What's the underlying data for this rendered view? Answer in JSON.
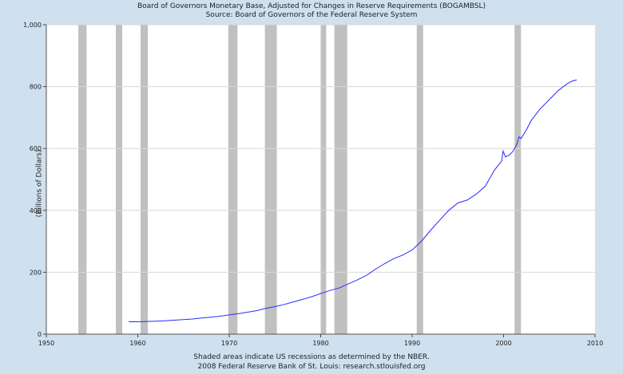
{
  "chart_data": {
    "type": "line",
    "title": "Board of Governors Monetary Base, Adjusted for Changes in Reserve Requirements (BOGAMBSL)",
    "subtitle": "Source: Board of Governors of the Federal Reserve System",
    "xlabel": "",
    "ylabel": "(Billions of Dollars)",
    "xlim": [
      1950,
      2010
    ],
    "ylim": [
      0,
      1000
    ],
    "x_ticks": [
      1950,
      1960,
      1970,
      1980,
      1990,
      2000,
      2010
    ],
    "y_ticks": [
      0,
      200,
      400,
      600,
      800,
      1000
    ],
    "y_tick_labels": [
      "0",
      "200",
      "400",
      "600",
      "800",
      "1,000"
    ],
    "grid": "horizontal",
    "colors": {
      "background": "#cfe0ef",
      "plot": "#ffffff",
      "line": "#2a2aff",
      "recession": "#c0c0c0",
      "grid": "#d8d8d8"
    },
    "recessions": [
      [
        1953.5,
        1954.4
      ],
      [
        1957.6,
        1958.3
      ],
      [
        1960.3,
        1961.1
      ],
      [
        1969.9,
        1970.9
      ],
      [
        1973.9,
        1975.2
      ],
      [
        1980.0,
        1980.6
      ],
      [
        1981.5,
        1982.9
      ],
      [
        1990.5,
        1991.2
      ],
      [
        2001.2,
        2001.9
      ]
    ],
    "series": [
      {
        "name": "BOGAMBSL",
        "x": [
          1959.0,
          1960.0,
          1961.0,
          1962.0,
          1963.0,
          1964.0,
          1965.0,
          1966.0,
          1967.0,
          1968.0,
          1969.0,
          1970.0,
          1971.0,
          1972.0,
          1973.0,
          1974.0,
          1975.0,
          1976.0,
          1977.0,
          1978.0,
          1979.0,
          1980.0,
          1981.0,
          1982.0,
          1983.0,
          1984.0,
          1985.0,
          1986.0,
          1987.0,
          1988.0,
          1989.0,
          1990.0,
          1991.0,
          1992.0,
          1993.0,
          1994.0,
          1995.0,
          1996.0,
          1997.0,
          1998.0,
          1999.0,
          1999.8,
          1999.95,
          2000.2,
          2000.6,
          2001.0,
          2001.4,
          2001.7,
          2001.9,
          2002.5,
          2003.0,
          2004.0,
          2005.0,
          2006.0,
          2007.0,
          2007.5,
          2008.0
        ],
        "values": [
          40,
          40,
          41,
          42,
          43,
          45,
          47,
          49,
          52,
          55,
          58,
          62,
          66,
          71,
          76,
          83,
          89,
          96,
          104,
          112,
          121,
          131,
          141,
          149,
          162,
          175,
          190,
          210,
          228,
          244,
          256,
          272,
          300,
          335,
          368,
          400,
          424,
          433,
          452,
          478,
          530,
          560,
          592,
          573,
          578,
          590,
          610,
          638,
          632,
          660,
          690,
          728,
          758,
          788,
          810,
          818,
          822
        ]
      }
    ],
    "footer": [
      "Shaded areas indicate US recessions as determined by the NBER.",
      "2008 Federal Reserve Bank of St. Louis: research.stlouisfed.org"
    ]
  }
}
